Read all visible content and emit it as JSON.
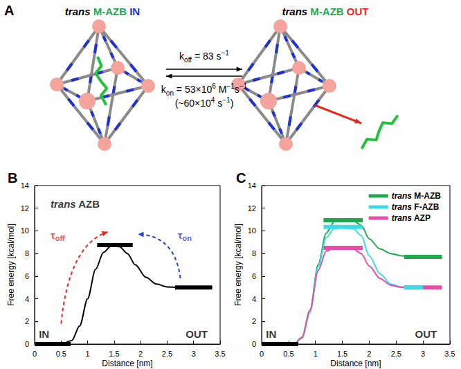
{
  "diagram": {
    "label": "A",
    "left_title": [
      {
        "t": "trans",
        "italic": true
      },
      {
        "t": " M-AZB",
        "color": "#1fa84f"
      },
      {
        "t": " IN",
        "color": "#2030d8"
      }
    ],
    "right_title": [
      {
        "t": "trans",
        "italic": true
      },
      {
        "t": " M-AZB",
        "color": "#1fa84f"
      },
      {
        "t": " OUT",
        "color": "#e8281e"
      }
    ],
    "k_off": [
      {
        "t": "k"
      },
      {
        "t": "off",
        "sub": true
      },
      {
        "t": " = 83 s"
      },
      {
        "t": "−1",
        "sup": true
      }
    ],
    "k_on": [
      {
        "t": "k"
      },
      {
        "t": "on",
        "sub": true
      },
      {
        "t": " = 53×10"
      },
      {
        "t": "6",
        "sup": true
      },
      {
        "t": " M"
      },
      {
        "t": "−1",
        "sup": true
      },
      {
        "t": "s"
      },
      {
        "t": "−1",
        "sup": true
      }
    ],
    "k_on_note": [
      {
        "t": "(~60×10"
      },
      {
        "t": "4",
        "sup": true
      },
      {
        "t": " s"
      },
      {
        "t": "−1",
        "sup": true
      },
      {
        "t": ")"
      }
    ]
  },
  "chart_data": [
    {
      "type": "line",
      "title": "B",
      "xlabel": "Distance [nm]",
      "ylabel": "Free energy [kcal/mol]",
      "xlim": [
        0,
        3.5
      ],
      "xticks": [
        0,
        0.5,
        1,
        1.5,
        2,
        2.5,
        3,
        3.5
      ],
      "ylim": [
        0,
        14
      ],
      "yticks": [
        0,
        2,
        4,
        6,
        8,
        10,
        12,
        14
      ],
      "grid": false,
      "series": [
        {
          "color": "#000000",
          "x": [
            0,
            0.5,
            0.7,
            0.85,
            1.0,
            1.15,
            1.3,
            1.45,
            1.6,
            1.75,
            1.9,
            2.1,
            2.3,
            2.5,
            2.7,
            3.35
          ],
          "values": [
            0,
            0,
            0.3,
            1.6,
            4.0,
            6.6,
            8.1,
            8.7,
            8.6,
            8.0,
            7.0,
            5.9,
            5.3,
            5.05,
            5.0,
            5.0
          ]
        }
      ],
      "levels": [
        {
          "xrange": [
            0,
            0.68
          ],
          "value": 0,
          "color": "#000000"
        },
        {
          "xrange": [
            1.18,
            1.85
          ],
          "value": 8.75,
          "color": "#000000"
        },
        {
          "xrange": [
            2.65,
            3.35
          ],
          "value": 5.0,
          "color": "#000000"
        }
      ],
      "annotations": [
        {
          "text": [
            {
              "t": "trans",
              "italic": true
            },
            {
              "t": " AZB"
            }
          ]
        },
        {
          "text": [
            {
              "t": "IN"
            }
          ]
        },
        {
          "text": [
            {
              "t": "OUT"
            }
          ]
        },
        {
          "text": [
            {
              "t": "τ"
            },
            {
              "t": "off",
              "sub": true
            }
          ],
          "color": "#e8281e"
        },
        {
          "text": [
            {
              "t": "τ"
            },
            {
              "t": "on",
              "sub": true
            }
          ],
          "color": "#2342e0"
        }
      ]
    },
    {
      "type": "line",
      "title": "C",
      "xlabel": "Distance [nm]",
      "ylabel": "Free energy [kcal/mol]",
      "xlim": [
        0,
        3.5
      ],
      "xticks": [
        0,
        0.5,
        1,
        1.5,
        2,
        2.5,
        3,
        3.5
      ],
      "ylim": [
        0,
        14
      ],
      "yticks": [
        0,
        2,
        4,
        6,
        8,
        10,
        12,
        14
      ],
      "grid": false,
      "legend": "upper right",
      "series": [
        {
          "name": "trans M-AZB",
          "color": "#1fa84f",
          "x": [
            0,
            0.6,
            0.75,
            0.9,
            1.05,
            1.2,
            1.35,
            1.5,
            1.7,
            1.85,
            2.0,
            2.2,
            2.4,
            2.6,
            2.8,
            3.35
          ],
          "values": [
            0,
            0,
            0.6,
            3.0,
            7.0,
            9.8,
            10.8,
            10.95,
            10.9,
            10.5,
            9.3,
            8.4,
            8.0,
            7.8,
            7.7,
            7.65
          ],
          "levels": [
            {
              "xrange": [
                1.15,
                1.88
              ],
              "value": 10.95
            },
            {
              "xrange": [
                2.65,
                3.35
              ],
              "value": 7.7
            }
          ]
        },
        {
          "name": "trans F-AZB",
          "color": "#3ddbe6",
          "x": [
            0,
            0.6,
            0.75,
            0.9,
            1.05,
            1.2,
            1.35,
            1.5,
            1.7,
            1.85,
            2.0,
            2.2,
            2.4,
            2.6,
            2.8,
            3.35
          ],
          "values": [
            0,
            0,
            0.5,
            2.8,
            6.8,
            9.4,
            10.2,
            10.3,
            10.2,
            9.6,
            7.8,
            6.2,
            5.3,
            5.05,
            5.0,
            5.0
          ],
          "levels": [
            {
              "xrange": [
                1.15,
                1.88
              ],
              "value": 10.35
            },
            {
              "xrange": [
                2.65,
                3.0
              ],
              "value": 5.0
            }
          ]
        },
        {
          "name": "trans AZP",
          "color": "#e84ea8",
          "x": [
            0,
            0.6,
            0.75,
            0.9,
            1.05,
            1.2,
            1.35,
            1.5,
            1.7,
            1.85,
            2.0,
            2.2,
            2.4,
            2.6,
            2.8,
            3.35
          ],
          "values": [
            0,
            0,
            0.6,
            3.0,
            6.5,
            8.2,
            8.5,
            8.5,
            8.4,
            8.0,
            6.9,
            5.8,
            5.2,
            5.0,
            5.0,
            5.0
          ],
          "levels": [
            {
              "xrange": [
                1.15,
                1.88
              ],
              "value": 8.5
            },
            {
              "xrange": [
                2.65,
                3.35
              ],
              "value": 5.0
            }
          ]
        }
      ],
      "levels": [
        {
          "xrange": [
            0,
            0.68
          ],
          "value": 0,
          "color": "#000000"
        }
      ],
      "annotations": [
        {
          "text": [
            {
              "t": "IN"
            }
          ]
        },
        {
          "text": [
            {
              "t": "OUT"
            }
          ]
        }
      ]
    }
  ]
}
